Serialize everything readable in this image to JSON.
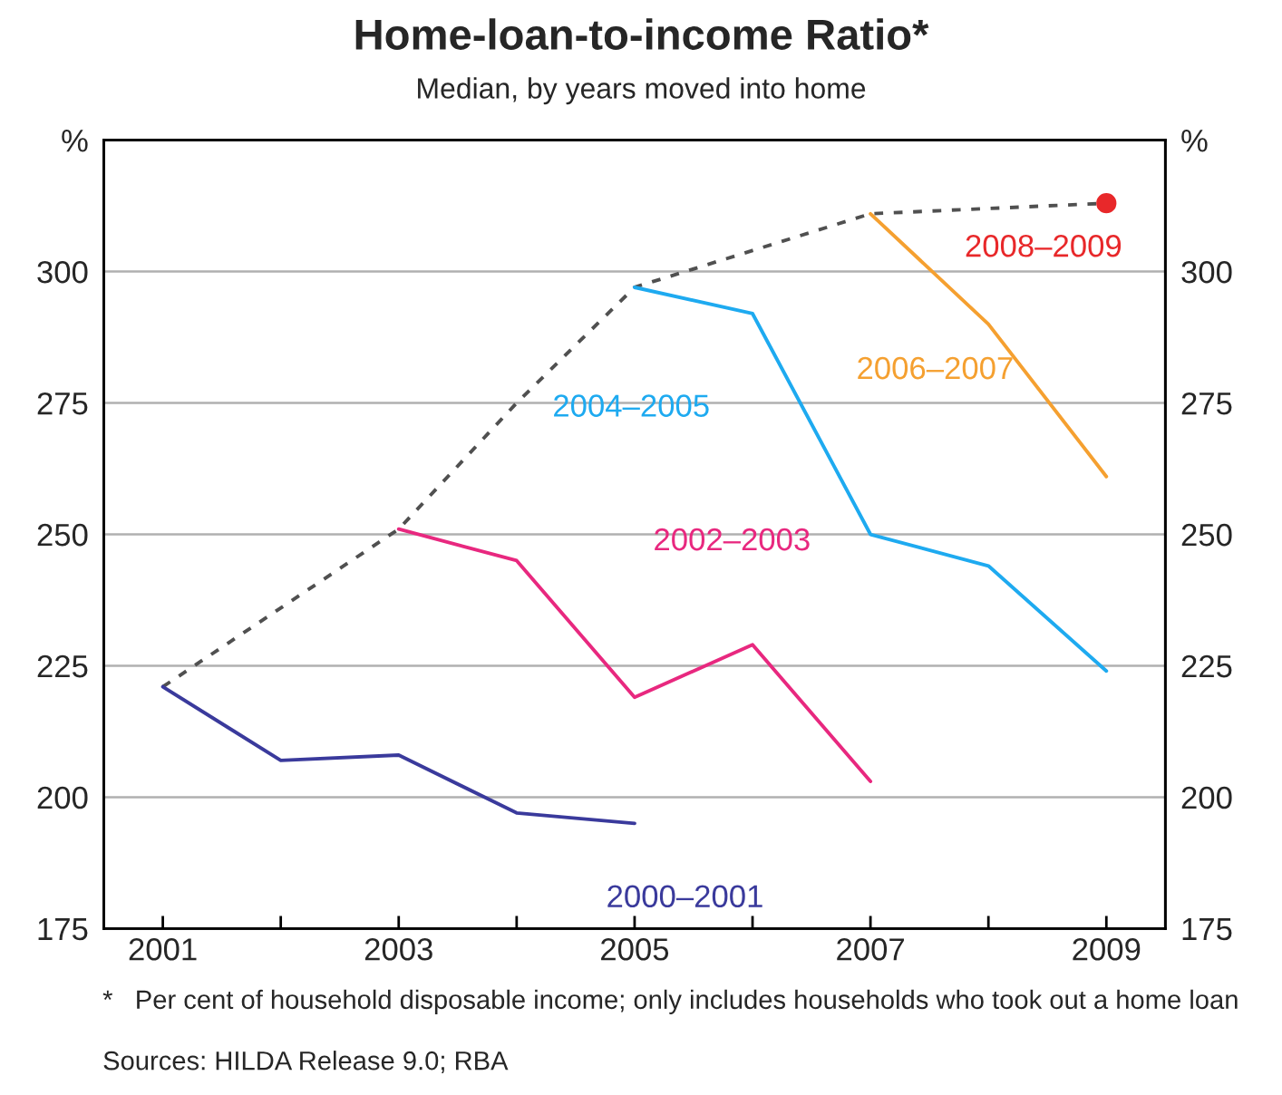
{
  "chart_data": {
    "type": "line",
    "title": "Home-loan-to-income Ratio*",
    "subtitle": "Median, by years moved into home",
    "x": [
      2001,
      2002,
      2003,
      2004,
      2005,
      2006,
      2007,
      2008,
      2009
    ],
    "xlim": [
      2000.5,
      2009.5
    ],
    "xticks": [
      2001,
      {
        "value": 2002,
        "label": null
      },
      2003,
      {
        "value": 2004,
        "label": null
      },
      2005,
      {
        "value": 2006,
        "label": null
      },
      2007,
      {
        "value": 2008,
        "label": null
      },
      2009
    ],
    "ylim": [
      175,
      325
    ],
    "yticks": [
      175,
      200,
      225,
      250,
      275,
      300,
      {
        "value": 325,
        "label": "%"
      }
    ],
    "y2lim": [
      175,
      325
    ],
    "y2ticks": [
      175,
      200,
      225,
      250,
      275,
      300,
      {
        "value": 325,
        "label": "%"
      }
    ],
    "grid": "y",
    "series": [
      {
        "name": "2000–2001",
        "color": "#3a3a9c",
        "values": [
          221,
          207,
          208,
          197,
          195,
          null,
          null,
          null,
          null
        ]
      },
      {
        "name": "2002–2003",
        "color": "#e8287f",
        "values": [
          null,
          null,
          251,
          245,
          219,
          229,
          203,
          null,
          null
        ]
      },
      {
        "name": "2004–2005",
        "color": "#1eaaf0",
        "values": [
          null,
          null,
          null,
          null,
          297,
          292,
          250,
          244,
          224
        ]
      },
      {
        "name": "2006–2007",
        "color": "#f5a030",
        "values": [
          null,
          null,
          null,
          null,
          null,
          null,
          311,
          290,
          261
        ]
      },
      {
        "name": "2008–2009",
        "color": "#e8282a",
        "type": "scatter",
        "marker": "circle",
        "values": [
          null,
          null,
          null,
          null,
          null,
          null,
          null,
          null,
          313
        ]
      },
      {
        "color": "#505050",
        "line_style": "dashed",
        "values": [
          221,
          null,
          251,
          275,
          297,
          304,
          311,
          312,
          313
        ]
      }
    ],
    "annotations": [
      "*   Per cent of household disposable income; only includes households who took out a home loan",
      "Sources: HILDA Release 9.0; RBA"
    ]
  }
}
